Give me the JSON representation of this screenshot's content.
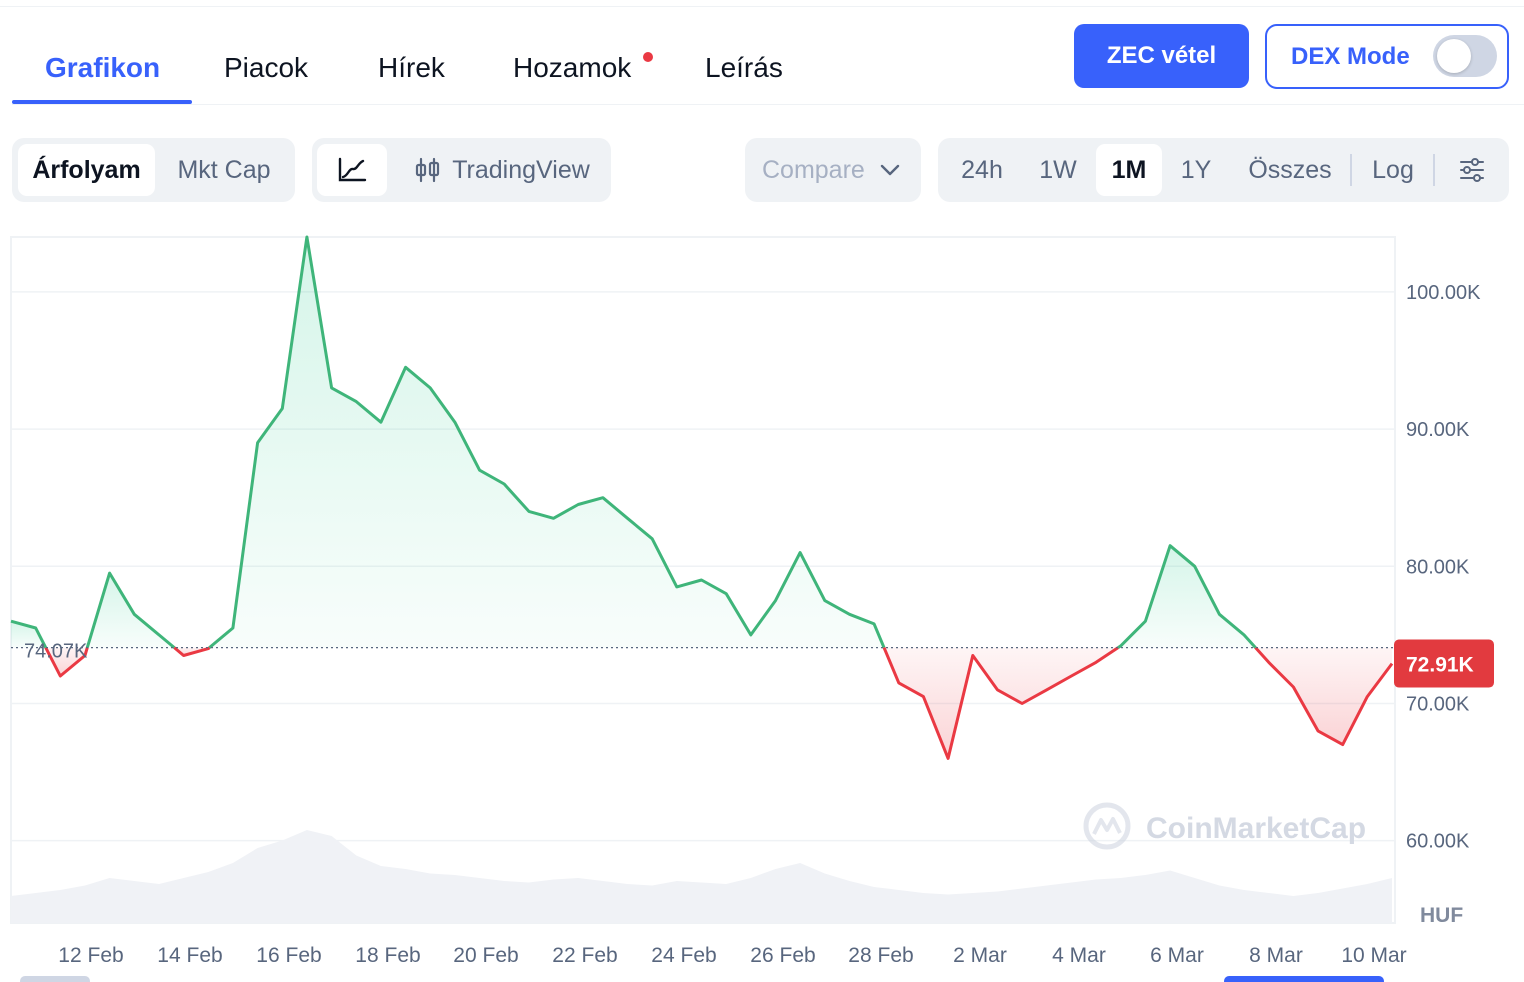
{
  "tabs": [
    {
      "label": "Grafikon",
      "active": true
    },
    {
      "label": "Piacok"
    },
    {
      "label": "Hírek"
    },
    {
      "label": "Hozamok",
      "badge": true
    },
    {
      "label": "Leírás"
    }
  ],
  "buy_button": "ZEC vétel",
  "dex_mode": {
    "label": "DEX Mode",
    "on": false
  },
  "metric_toggle": {
    "options": [
      "Árfolyam",
      "Mkt Cap"
    ],
    "selected": "Árfolyam"
  },
  "chart_mode": {
    "line_icon": "line-chart-icon",
    "candle_icon": "candlestick-icon",
    "tradingview_label": "TradingView",
    "selected": "line"
  },
  "compare": {
    "label": "Compare",
    "icon": "chevron-down-icon"
  },
  "ranges": {
    "options": [
      "24h",
      "1W",
      "1M",
      "1Y",
      "Összes"
    ],
    "selected": "1M",
    "log_label": "Log",
    "settings_icon": "sliders-icon"
  },
  "watermark": "CoinMarketCap",
  "colors": {
    "up": "#16c784",
    "line_up": "#3fb57a",
    "down": "#ea3943",
    "accent": "#3861fb",
    "price_tag": "#e23a3f"
  },
  "chart_data": {
    "type": "area",
    "currency": "HUF",
    "y_ticks": [
      "100.00K",
      "90.00K",
      "80.00K",
      "70.00K",
      "60.00K"
    ],
    "ylim": [
      54000,
      104000
    ],
    "x_ticks": [
      "12 Feb",
      "14 Feb",
      "16 Feb",
      "18 Feb",
      "20 Feb",
      "22 Feb",
      "24 Feb",
      "26 Feb",
      "28 Feb",
      "2 Mar",
      "4 Mar",
      "6 Mar",
      "8 Mar",
      "10 Mar"
    ],
    "baseline": {
      "value": 74070,
      "label": "74.07K"
    },
    "current_price": {
      "value": 72910,
      "label": "72.91K"
    },
    "grid": true,
    "series": [
      {
        "x": [
          "10 Feb",
          "10 Feb 12h",
          "11 Feb",
          "11 Feb 12h",
          "12 Feb",
          "12 Feb 12h",
          "13 Feb",
          "13 Feb 12h",
          "14 Feb",
          "14 Feb 12h",
          "15 Feb",
          "15 Feb 12h",
          "16 Feb",
          "16 Feb 12h",
          "17 Feb",
          "17 Feb 12h",
          "18 Feb",
          "18 Feb 12h",
          "19 Feb",
          "19 Feb 12h",
          "20 Feb",
          "20 Feb 12h",
          "21 Feb",
          "21 Feb 12h",
          "22 Feb",
          "22 Feb 12h",
          "23 Feb",
          "23 Feb 12h",
          "24 Feb",
          "24 Feb 12h",
          "25 Feb",
          "25 Feb 12h",
          "26 Feb",
          "26 Feb 12h",
          "27 Feb",
          "27 Feb 12h",
          "28 Feb",
          "28 Feb 12h",
          "1 Mar",
          "1 Mar 12h",
          "2 Mar",
          "2 Mar 12h",
          "3 Mar",
          "3 Mar 12h",
          "4 Mar",
          "4 Mar 12h",
          "5 Mar",
          "5 Mar 12h",
          "6 Mar",
          "6 Mar 12h",
          "7 Mar",
          "7 Mar 12h",
          "8 Mar",
          "8 Mar 12h",
          "9 Mar",
          "9 Mar 12h",
          "10 Mar"
        ],
        "values": [
          76000,
          75500,
          72000,
          73500,
          79500,
          76500,
          75000,
          73500,
          74000,
          75500,
          89000,
          91500,
          104000,
          93000,
          92000,
          90500,
          94500,
          93000,
          90500,
          87000,
          86000,
          84000,
          83500,
          84500,
          85000,
          83500,
          82000,
          78500,
          79000,
          78000,
          75000,
          77500,
          81000,
          77500,
          76500,
          75800,
          71500,
          70500,
          66000,
          73500,
          71000,
          70000,
          71000,
          72000,
          73000,
          74200,
          76000,
          81500,
          80000,
          76500,
          75000,
          73000,
          71200,
          68000,
          67000,
          70500,
          72910
        ]
      }
    ],
    "volume": {
      "values": [
        0.18,
        0.2,
        0.22,
        0.25,
        0.3,
        0.28,
        0.26,
        0.3,
        0.34,
        0.4,
        0.5,
        0.55,
        0.62,
        0.58,
        0.45,
        0.38,
        0.36,
        0.33,
        0.32,
        0.3,
        0.28,
        0.27,
        0.29,
        0.3,
        0.28,
        0.26,
        0.25,
        0.28,
        0.27,
        0.26,
        0.3,
        0.36,
        0.4,
        0.33,
        0.28,
        0.24,
        0.22,
        0.2,
        0.19,
        0.2,
        0.21,
        0.23,
        0.25,
        0.27,
        0.29,
        0.3,
        0.32,
        0.35,
        0.3,
        0.25,
        0.22,
        0.2,
        0.18,
        0.2,
        0.23,
        0.26,
        0.3
      ]
    }
  }
}
